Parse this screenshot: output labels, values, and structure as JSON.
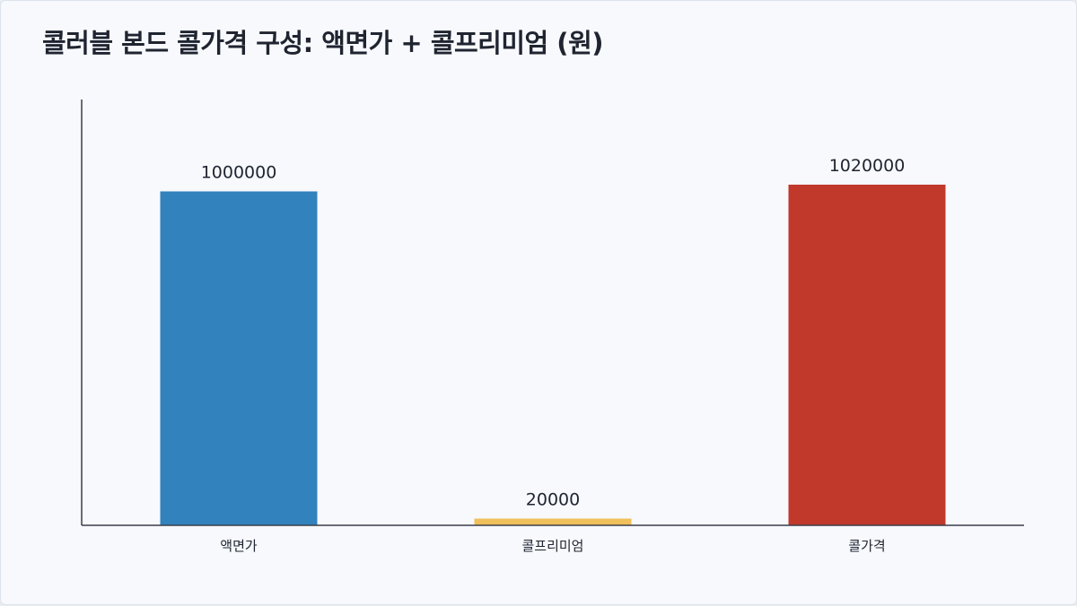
{
  "chart_data": {
    "type": "bar",
    "title": "콜러블 본드 콜가격 구성: 액면가 + 콜프리미엄 (원)",
    "categories": [
      "액면가",
      "콜프리미엄",
      "콜가격"
    ],
    "values": [
      1000000,
      20000,
      1020000
    ],
    "data_labels": [
      "1000000",
      "20000",
      "1020000"
    ],
    "colors": [
      "#3182bd",
      "#f0c05a",
      "#c0392b"
    ],
    "xlabel": "",
    "ylabel": "",
    "ylim": [
      0,
      1020000
    ],
    "grid": false,
    "legend": "none"
  }
}
